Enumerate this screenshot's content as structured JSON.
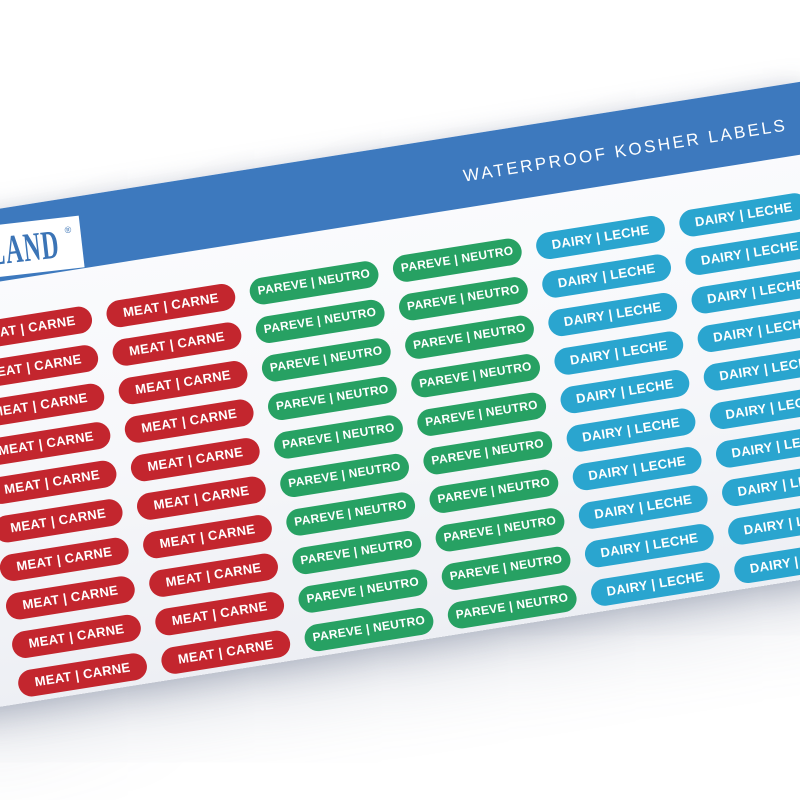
{
  "header": {
    "band_text": "WATERPROOF KOSHER LABELS",
    "band_color": "#3d79be",
    "text_color": "#ffffff"
  },
  "logo": {
    "visible_text": "L LAND",
    "registered_mark": "®",
    "text_color": "#3b74b6",
    "plate_color": "#ffffff"
  },
  "sheet": {
    "background_color": "#f6f7fa",
    "rows_per_column": 10,
    "columns": [
      {
        "label": "MEAT | CARNE",
        "color": "#c3262e"
      },
      {
        "label": "MEAT | CARNE",
        "color": "#c3262e"
      },
      {
        "label": "PAREVE | NEUTRO",
        "color": "#27a163"
      },
      {
        "label": "PAREVE | NEUTRO",
        "color": "#27a163"
      },
      {
        "label": "DAIRY | LECHE",
        "color": "#2aa5cf"
      },
      {
        "label": "DAIRY | LECHE",
        "color": "#2aa5cf"
      }
    ]
  }
}
